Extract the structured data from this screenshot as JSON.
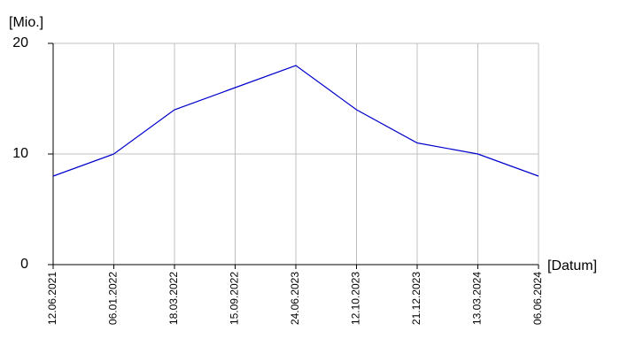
{
  "chart_data": {
    "type": "line",
    "y_label": "[Mio.]",
    "x_label": "[Datum]",
    "categories": [
      "12.06.2021",
      "06.01.2022",
      "18.03.2022",
      "15.09.2022",
      "24.06.2023",
      "12.10.2023",
      "21.12.2023",
      "13.03.2024",
      "06.06.2024"
    ],
    "values": [
      8,
      10,
      14,
      16,
      18,
      14,
      11,
      10,
      8
    ],
    "color": "#0000cc",
    "ylim": [
      0,
      20
    ],
    "yticks": [
      0,
      10,
      20
    ],
    "grid": true
  }
}
